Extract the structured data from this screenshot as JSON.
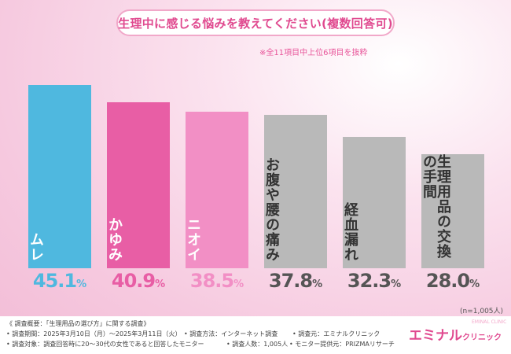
{
  "title": "生理中に感じる悩みを教えてください(複数回答可)",
  "note": "※全11項目中上位6項目を抜粋",
  "sample_size": "(n=1,005人)",
  "chart_data": {
    "type": "bar",
    "categories": [
      "ムレ",
      "かゆみ",
      "ニオイ",
      "お腹や腰の痛み",
      "経血漏れ",
      "生理用品の交換の手間"
    ],
    "values": [
      45.1,
      40.9,
      38.5,
      37.8,
      32.3,
      28.0
    ],
    "value_labels": [
      {
        "big": "45.1",
        "small": "%"
      },
      {
        "big": "40.9",
        "small": "%"
      },
      {
        "big": "38.5",
        "small": "%"
      },
      {
        "big": "37.8",
        "small": "%"
      },
      {
        "big": "32.3",
        "small": "%"
      },
      {
        "big": "28.0",
        "small": "%"
      }
    ],
    "bar_colors": [
      "#4fb8df",
      "#e85ea5",
      "#f28fc5",
      "#b9b9b9",
      "#b9b9b9",
      "#b9b9b9"
    ],
    "value_colors": [
      "#4fb8df",
      "#e85ea5",
      "#f28fc5",
      "#555555",
      "#555555",
      "#555555"
    ],
    "label_colors": [
      "light",
      "light",
      "light",
      "dark",
      "dark",
      "dark"
    ],
    "ylim": [
      0,
      50
    ]
  },
  "footer": {
    "line1": "《 調査概要：「生理用品の選び方」に関する調査》",
    "line2a": "• 調査期間：2025年3月10日（月）～2025年3月11日（火）",
    "line2b": "• 調査方法：インターネット調査",
    "line2c": "• 調査元：エミナルクリニック",
    "line3a": "• 調査対象：調査回答時に20～30代の女性であると回答したモニター",
    "line3b": "• 調査人数：1,005人",
    "line3c": "• モニター提供元：PRIZMAリサーチ"
  },
  "logo": {
    "main": "エミナル",
    "sub": "クリニック",
    "tiny": "EMINAL CLINIC"
  }
}
